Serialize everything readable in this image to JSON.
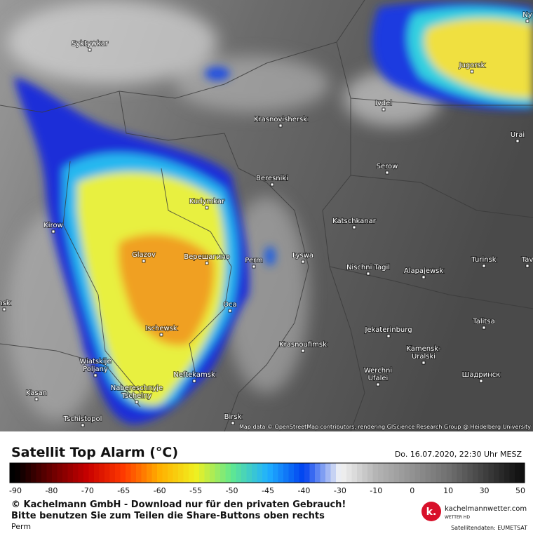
{
  "map": {
    "cities": [
      {
        "lines": [
          "Syktywkar"
        ]
      },
      {
        "lines": [
          "Ny"
        ]
      },
      {
        "lines": [
          "Jugorsk"
        ]
      },
      {
        "lines": [
          "Ivdel"
        ]
      },
      {
        "lines": [
          "Krasnovishersk"
        ]
      },
      {
        "lines": [
          "Urai"
        ]
      },
      {
        "lines": [
          "Serow"
        ]
      },
      {
        "lines": [
          "Beresniki"
        ]
      },
      {
        "lines": [
          "Kudymkar"
        ]
      },
      {
        "lines": [
          "Katschkanar"
        ]
      },
      {
        "lines": [
          "Kirow"
        ]
      },
      {
        "lines": [
          "Glazov"
        ]
      },
      {
        "lines": [
          "Верещагино"
        ]
      },
      {
        "lines": [
          "Perm"
        ]
      },
      {
        "lines": [
          "Lyswa"
        ]
      },
      {
        "lines": [
          "Nischni Tagil"
        ]
      },
      {
        "lines": [
          "Alapajewsk"
        ]
      },
      {
        "lines": [
          "Turinsk"
        ]
      },
      {
        "lines": [
          "Tav"
        ]
      },
      {
        "lines": [
          "nsk"
        ]
      },
      {
        "lines": [
          "Oca"
        ]
      },
      {
        "lines": [
          "Talitsa"
        ]
      },
      {
        "lines": [
          "Ischewsk"
        ]
      },
      {
        "lines": [
          "Jekaterinburg"
        ]
      },
      {
        "lines": [
          "Krasnoufimsk"
        ]
      },
      {
        "lines": [
          "Kamensk-",
          "Uralski"
        ]
      },
      {
        "lines": [
          "Wiatskije",
          "Poljany"
        ]
      },
      {
        "lines": [
          "Neftekamsk"
        ]
      },
      {
        "lines": [
          "Werchni",
          "Ufalei"
        ]
      },
      {
        "lines": [
          "Шадринск"
        ]
      },
      {
        "lines": [
          "Nabereschnyje",
          "Tschelny"
        ]
      },
      {
        "lines": [
          "Kasan"
        ]
      },
      {
        "lines": [
          "Tschistopol"
        ]
      },
      {
        "lines": [
          "Birsk"
        ]
      }
    ],
    "attribution": "Map data © OpenStreetMap contributors, rendering GIScience Research Group @ Heidelberg University"
  },
  "legend": {
    "title": "Satellit Top Alarm (°C)",
    "timestamp": "Do. 16.07.2020, 22:30 Uhr MESZ",
    "ticks": [
      -90,
      -80,
      -70,
      -65,
      -60,
      -55,
      -50,
      -45,
      -40,
      -30,
      -10,
      0,
      10,
      30,
      50
    ],
    "colors": [
      "#000000",
      "#6a0000",
      "#c80000",
      "#ff3a00",
      "#ffb000",
      "#f0f020",
      "#60e890",
      "#20b0ff",
      "#0040f0",
      "#f4f4f4",
      "#b4b4b4",
      "#929292",
      "#707070",
      "#404040",
      "#101010"
    ]
  },
  "footer": {
    "copyright": "© Kachelmann GmbH - Download nur für den privaten Gebrauch!",
    "share": "Bitte benutzen Sie zum Teilen die Share-Buttons oben rechts",
    "location": "Perm",
    "logo_letter": "k.",
    "brand": "kachelmannwetter.com",
    "brand_sub": "WETTER HD",
    "source": "Satellitendaten: EUMETSAT"
  }
}
